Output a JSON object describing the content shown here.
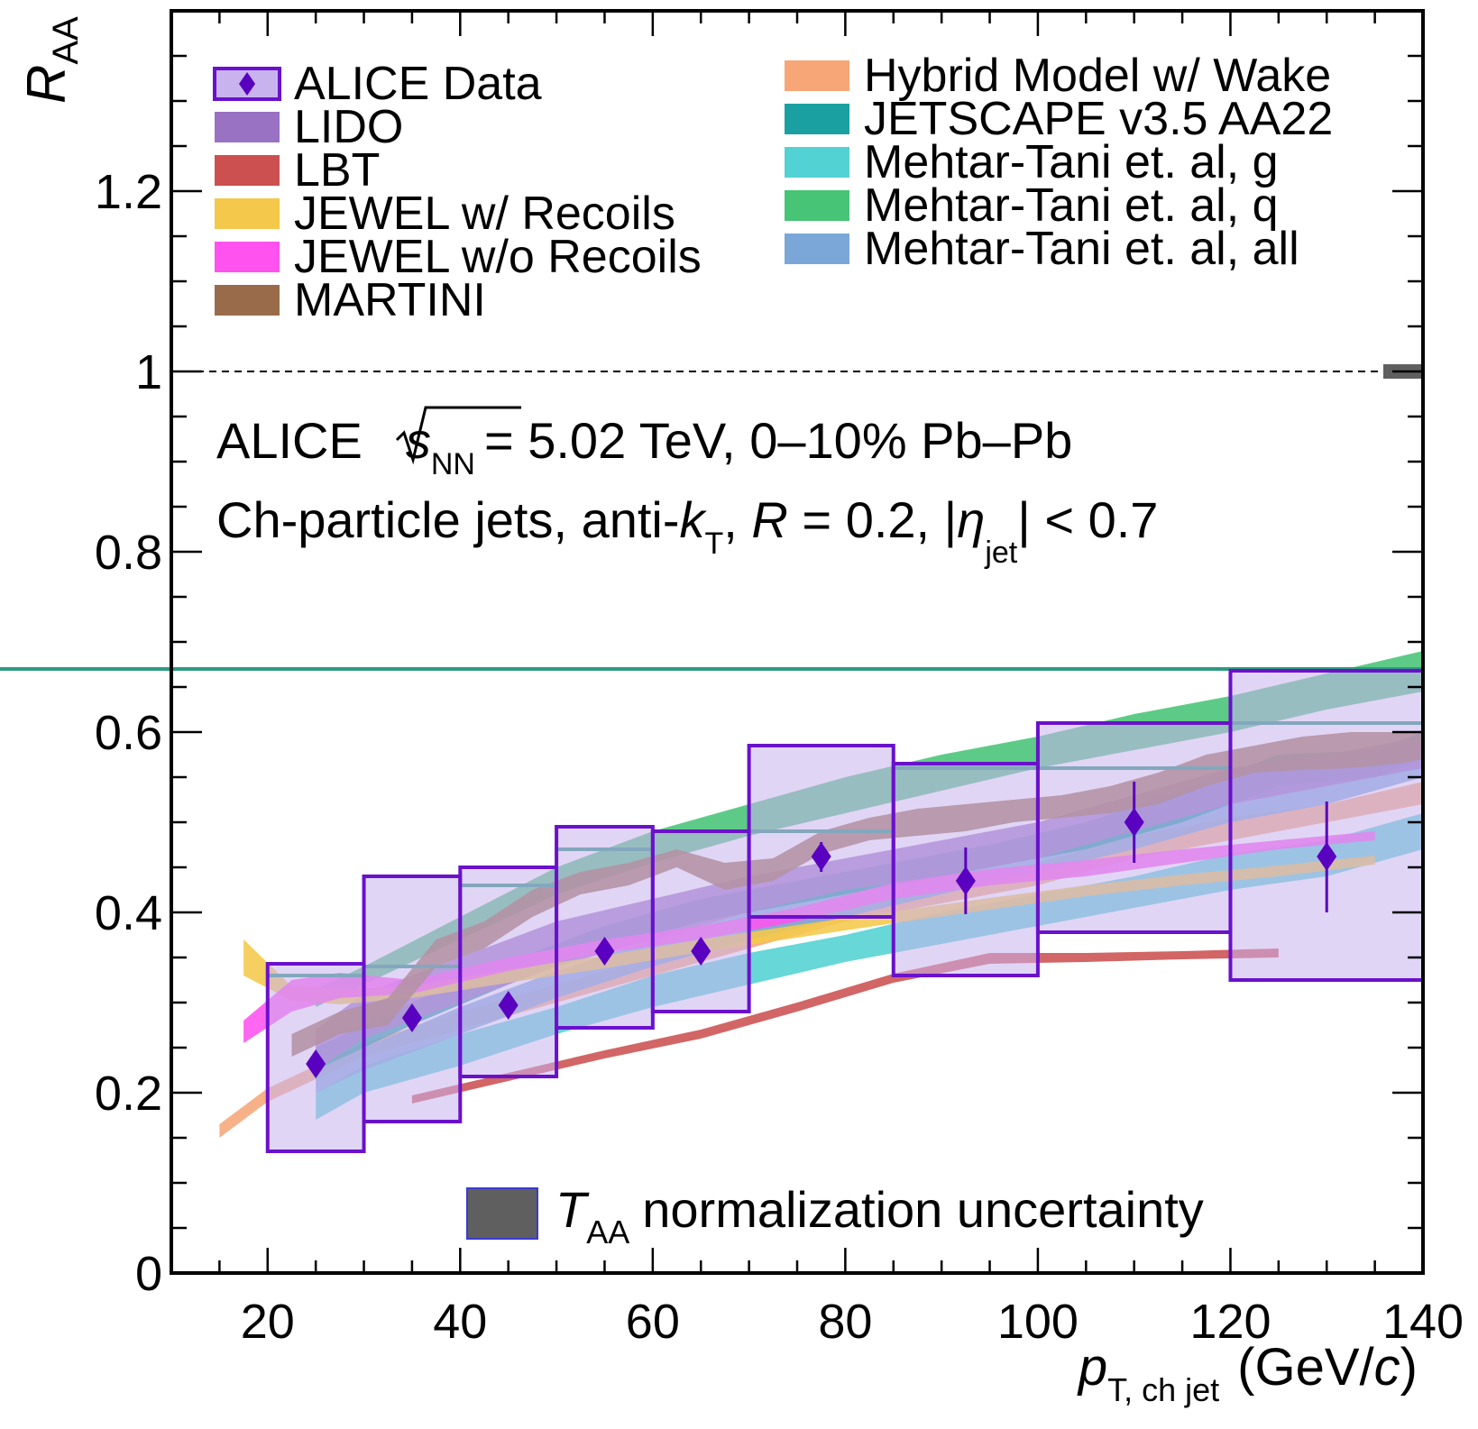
{
  "chart_data": {
    "type": "line",
    "axes": {
      "x": {
        "label_main": "p",
        "label_sub": "T, ch jet",
        "label_unit_pre": "(GeV/",
        "label_unit_c": "c",
        "label_unit_post": ")",
        "range": [
          10,
          140
        ],
        "tick_labels": [
          "20",
          "40",
          "60",
          "80",
          "100",
          "120",
          "140"
        ]
      },
      "y": {
        "label_main": "R",
        "label_sub": "AA",
        "range": [
          0,
          1.4
        ],
        "tick_labels": [
          "0",
          "0.2",
          "0.4",
          "0.6",
          "0.8",
          "1",
          "1.2"
        ]
      }
    },
    "reference_line": {
      "y": 1,
      "style": "dashed"
    },
    "annotations": {
      "line1_pre": "ALICE",
      "line1_s": "s",
      "line1_nn": "NN",
      "line1_post": "= 5.02 TeV, 0–10% Pb–Pb",
      "line2_a": "Ch-particle jets, anti-",
      "line2_k": "k",
      "line2_t": "T",
      "line2_b": ", ",
      "line2_r": "R",
      "line2_c": " = 0.2, |",
      "line2_eta": "η",
      "line2_jet": "jet",
      "line2_d": "| < 0.7"
    },
    "taa_legend": {
      "T": "T",
      "sub": "AA",
      "text": "normalization uncertainty",
      "color": "#5f5f5f"
    },
    "data": {
      "name": "ALICE Data",
      "marker_color": "#5a00c0",
      "box_fill": "#c9b3ee",
      "box_stroke": "#6a11cb",
      "points": [
        {
          "x": 25,
          "y": 0.232,
          "xlo": 20,
          "xhi": 30,
          "stat_lo": 0.222,
          "stat_hi": 0.242,
          "sys_lo": 0.135,
          "sys_hi": 0.343
        },
        {
          "x": 35,
          "y": 0.283,
          "xlo": 30,
          "xhi": 40,
          "stat_lo": 0.274,
          "stat_hi": 0.292,
          "sys_lo": 0.168,
          "sys_hi": 0.44
        },
        {
          "x": 45,
          "y": 0.297,
          "xlo": 40,
          "xhi": 50,
          "stat_lo": 0.289,
          "stat_hi": 0.305,
          "sys_lo": 0.218,
          "sys_hi": 0.45
        },
        {
          "x": 55,
          "y": 0.357,
          "xlo": 50,
          "xhi": 60,
          "stat_lo": 0.349,
          "stat_hi": 0.365,
          "sys_lo": 0.272,
          "sys_hi": 0.495
        },
        {
          "x": 65,
          "y": 0.357,
          "xlo": 60,
          "xhi": 70,
          "stat_lo": 0.349,
          "stat_hi": 0.366,
          "sys_lo": 0.29,
          "sys_hi": 0.49
        },
        {
          "x": 77.5,
          "y": 0.462,
          "xlo": 70,
          "xhi": 85,
          "stat_lo": 0.445,
          "stat_hi": 0.478,
          "sys_lo": 0.395,
          "sys_hi": 0.585
        },
        {
          "x": 92.5,
          "y": 0.435,
          "xlo": 85,
          "xhi": 100,
          "stat_lo": 0.398,
          "stat_hi": 0.472,
          "sys_lo": 0.33,
          "sys_hi": 0.565
        },
        {
          "x": 110,
          "y": 0.5,
          "xlo": 100,
          "xhi": 120,
          "stat_lo": 0.455,
          "stat_hi": 0.545,
          "sys_lo": 0.378,
          "sys_hi": 0.61
        },
        {
          "x": 130,
          "y": 0.462,
          "xlo": 120,
          "xhi": 140,
          "stat_lo": 0.4,
          "stat_hi": 0.523,
          "sys_lo": 0.325,
          "sys_hi": 0.668
        }
      ]
    },
    "series": [
      {
        "name": "LIDO",
        "color": "#9a72c4",
        "x": [
          25,
          30,
          40,
          50,
          60,
          70,
          80,
          90,
          100,
          110,
          120,
          130,
          140
        ],
        "lo": [
          0.225,
          0.26,
          0.3,
          0.34,
          0.37,
          0.4,
          0.425,
          0.44,
          0.46,
          0.49,
          0.52,
          0.54,
          0.56
        ],
        "hi": [
          0.27,
          0.31,
          0.35,
          0.39,
          0.415,
          0.44,
          0.46,
          0.48,
          0.5,
          0.53,
          0.56,
          0.575,
          0.595
        ]
      },
      {
        "name": "LBT",
        "color": "#cc5050",
        "x": [
          35,
          45,
          55,
          65,
          75,
          85,
          95,
          105,
          115,
          125
        ],
        "lo": [
          0.188,
          0.213,
          0.238,
          0.26,
          0.29,
          0.322,
          0.343,
          0.345,
          0.348,
          0.35
        ],
        "hi": [
          0.197,
          0.222,
          0.247,
          0.27,
          0.3,
          0.332,
          0.355,
          0.355,
          0.357,
          0.36
        ]
      },
      {
        "name": "JEWEL w/ Recoils",
        "color": "#f4c84a",
        "x": [
          17.5,
          22.5,
          27.5,
          35,
          45,
          55,
          65,
          75,
          85,
          95,
          105,
          115,
          125,
          135
        ],
        "lo": [
          0.33,
          0.302,
          0.298,
          0.305,
          0.322,
          0.338,
          0.356,
          0.372,
          0.388,
          0.403,
          0.418,
          0.43,
          0.44,
          0.453
        ],
        "hi": [
          0.37,
          0.318,
          0.315,
          0.318,
          0.337,
          0.352,
          0.37,
          0.386,
          0.401,
          0.416,
          0.43,
          0.442,
          0.452,
          0.463
        ]
      },
      {
        "name": "JEWEL w/o Recoils",
        "color": "#ff52ee",
        "x": [
          17.5,
          22.5,
          27.5,
          35,
          45,
          55,
          65,
          75,
          85,
          95,
          105,
          115,
          125,
          135
        ],
        "lo": [
          0.255,
          0.29,
          0.305,
          0.31,
          0.335,
          0.355,
          0.37,
          0.39,
          0.415,
          0.43,
          0.44,
          0.455,
          0.47,
          0.48
        ],
        "hi": [
          0.28,
          0.325,
          0.333,
          0.325,
          0.35,
          0.37,
          0.385,
          0.405,
          0.433,
          0.448,
          0.458,
          0.47,
          0.48,
          0.49
        ]
      },
      {
        "name": "MARTINI",
        "color": "#9a6b4a",
        "x": [
          22.5,
          27.5,
          32.5,
          37.5,
          42.5,
          47.5,
          52.5,
          57.5,
          62.5,
          67.5,
          72.5,
          77.5,
          82.5,
          87.5,
          92.5,
          97.5,
          102.5,
          107.5,
          112.5,
          117.5,
          122.5,
          127.5,
          132.5,
          137.5,
          140
        ],
        "lo": [
          0.24,
          0.265,
          0.275,
          0.34,
          0.36,
          0.395,
          0.42,
          0.43,
          0.45,
          0.425,
          0.435,
          0.465,
          0.48,
          0.485,
          0.49,
          0.5,
          0.505,
          0.51,
          0.52,
          0.54,
          0.555,
          0.558,
          0.56,
          0.565,
          0.57
        ],
        "hi": [
          0.265,
          0.29,
          0.305,
          0.37,
          0.39,
          0.425,
          0.445,
          0.455,
          0.47,
          0.455,
          0.46,
          0.49,
          0.505,
          0.515,
          0.52,
          0.525,
          0.53,
          0.54,
          0.555,
          0.575,
          0.585,
          0.595,
          0.6,
          0.6,
          0.6
        ]
      },
      {
        "name": "Hybrid Model w/ Wake",
        "color": "#f6a677",
        "x": [
          15,
          20,
          30,
          40,
          50,
          60,
          70,
          80,
          90,
          100,
          110,
          120,
          130,
          140
        ],
        "lo": [
          0.15,
          0.19,
          0.24,
          0.27,
          0.3,
          0.33,
          0.36,
          0.39,
          0.41,
          0.43,
          0.46,
          0.48,
          0.5,
          0.52
        ],
        "hi": [
          0.165,
          0.205,
          0.255,
          0.29,
          0.32,
          0.35,
          0.38,
          0.41,
          0.43,
          0.455,
          0.485,
          0.505,
          0.52,
          0.545
        ]
      },
      {
        "name": "JETSCAPE v3.5 AA22",
        "color": "#1aa0a0",
        "x": [
          25,
          35,
          45,
          55,
          65,
          75,
          85,
          95,
          105,
          115,
          125,
          135,
          140
        ],
        "lo": [
          0.225,
          0.275,
          0.32,
          0.36,
          0.39,
          0.41,
          0.43,
          0.45,
          0.47,
          0.5,
          0.54,
          0.55,
          0.57
        ],
        "hi": [
          0.25,
          0.3,
          0.345,
          0.385,
          0.415,
          0.435,
          0.455,
          0.475,
          0.5,
          0.535,
          0.575,
          0.58,
          0.6
        ]
      },
      {
        "name": "Mehtar-Tani et. al, g",
        "color": "#52d2d2",
        "x": [
          25,
          30,
          40,
          50,
          60,
          70,
          80,
          90,
          100,
          110,
          120,
          130,
          140
        ],
        "lo": [
          0.17,
          0.2,
          0.23,
          0.265,
          0.295,
          0.32,
          0.345,
          0.365,
          0.385,
          0.405,
          0.425,
          0.44,
          0.47
        ],
        "hi": [
          0.2,
          0.23,
          0.265,
          0.295,
          0.33,
          0.355,
          0.375,
          0.4,
          0.42,
          0.44,
          0.465,
          0.48,
          0.51
        ]
      },
      {
        "name": "Mehtar-Tani et. al, q",
        "color": "#47c476",
        "x": [
          25,
          30,
          40,
          50,
          60,
          70,
          80,
          90,
          100,
          110,
          120,
          130,
          140
        ],
        "lo": [
          0.295,
          0.32,
          0.37,
          0.42,
          0.455,
          0.485,
          0.51,
          0.535,
          0.56,
          0.58,
          0.6,
          0.625,
          0.645
        ],
        "hi": [
          0.315,
          0.34,
          0.395,
          0.45,
          0.49,
          0.52,
          0.55,
          0.575,
          0.595,
          0.62,
          0.64,
          0.665,
          0.69
        ]
      },
      {
        "name": "Mehtar-Tani et. al, all",
        "color": "#7aa7d8",
        "x": [
          25,
          30,
          40,
          50,
          60,
          70,
          80,
          90,
          100,
          110,
          120,
          130,
          140
        ],
        "lo": [
          0.2,
          0.225,
          0.265,
          0.305,
          0.34,
          0.37,
          0.395,
          0.42,
          0.445,
          0.47,
          0.5,
          0.52,
          0.55
        ],
        "hi": [
          0.225,
          0.25,
          0.295,
          0.335,
          0.37,
          0.4,
          0.43,
          0.455,
          0.48,
          0.51,
          0.53,
          0.55,
          0.585
        ]
      }
    ],
    "mt_q_hist": {
      "color": "#2f9a80",
      "edges": [
        20,
        30,
        40,
        50,
        60,
        70,
        85,
        100,
        120,
        140
      ],
      "values": [
        0.33,
        0.34,
        0.43,
        0.47,
        0.49,
        0.49,
        0.56,
        0.56,
        0.61,
        0.67
      ]
    }
  }
}
